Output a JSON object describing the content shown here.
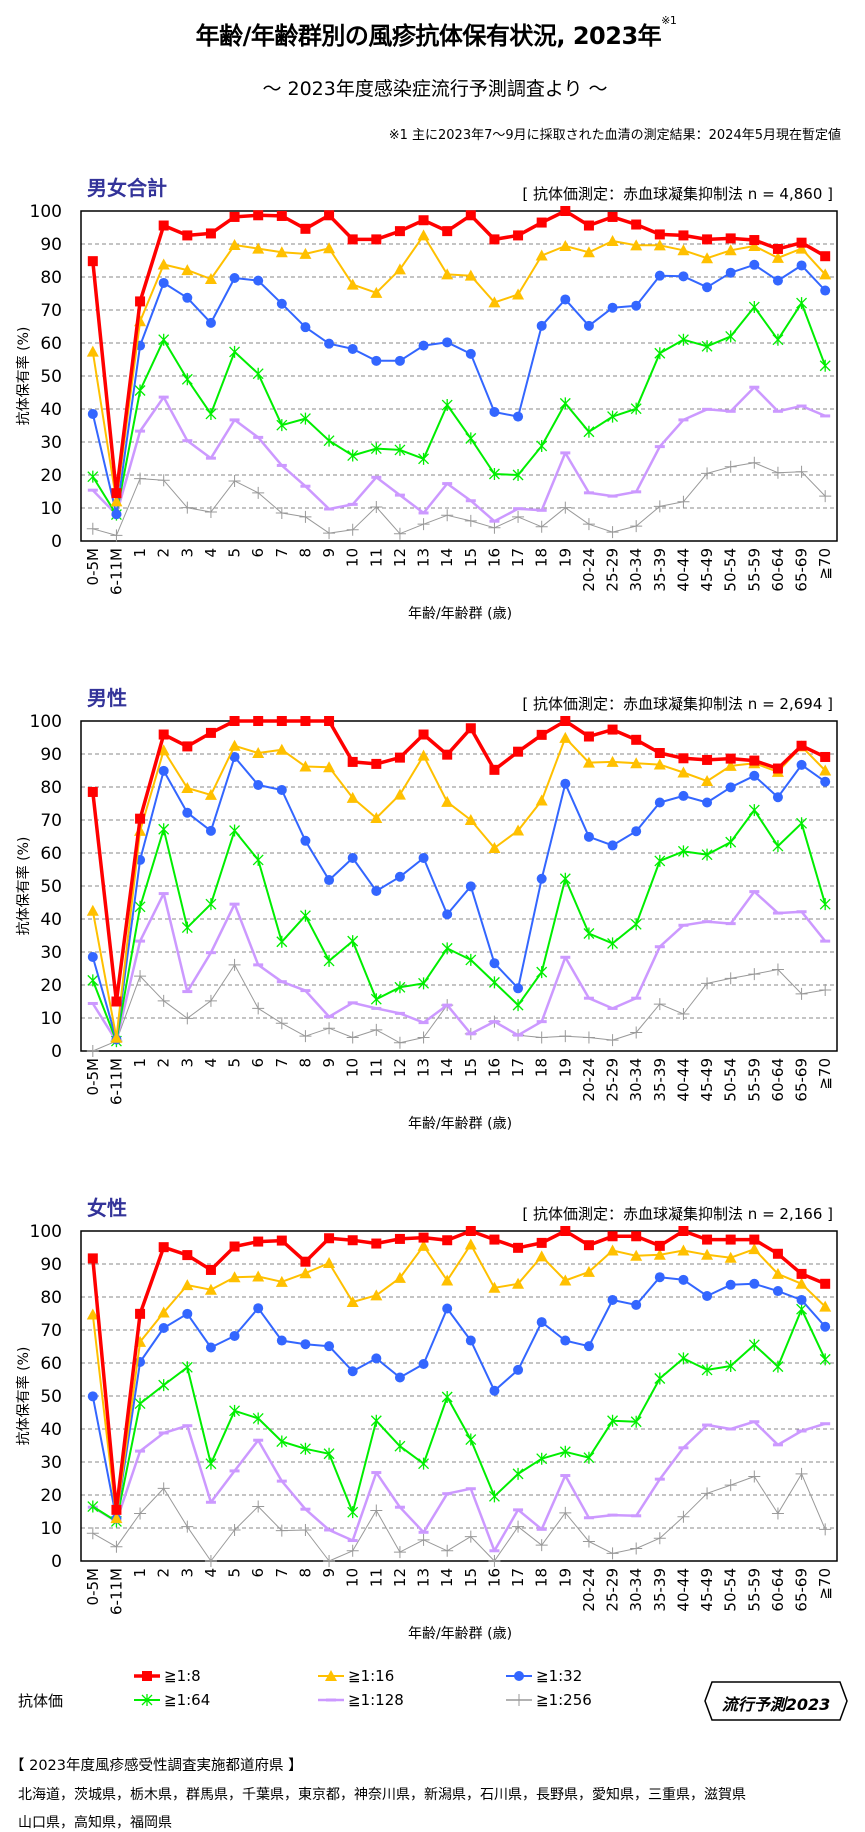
{
  "header": {
    "title": "年齢/年齢群別の風疹抗体保有状況, 2023年",
    "title_mark": "※1",
    "subtitle": "～ 2023年度感染症流行予測調査より ～",
    "note": "※1  主に2023年7～9月に採取された血清の測定結果：2024年5月現在暫定値"
  },
  "legend": {
    "title": "抗体価",
    "items": [
      {
        "label": "≧1:8",
        "color": "#ff0000",
        "marker": "square"
      },
      {
        "label": "≧1:16",
        "color": "#ffc000",
        "marker": "triangle"
      },
      {
        "label": "≧1:32",
        "color": "#3366ff",
        "marker": "circle"
      },
      {
        "label": "≧1:64",
        "color": "#00ee00",
        "marker": "asterisk"
      },
      {
        "label": "≧1:128",
        "color": "#cc99ff",
        "marker": "dash"
      },
      {
        "label": "≧1:256",
        "color": "#999999",
        "marker": "plus"
      }
    ]
  },
  "badge": {
    "label": "流行予測2023"
  },
  "footer": {
    "heading": "【 2023年度風疹感受性調査実施都道府県 】",
    "lines": [
      "北海道，茨城県，栃木県，群馬県，千葉県，東京都，神奈川県，新潟県，石川県，長野県，愛知県，三重県，滋賀県",
      "山口県，高知県，福岡県"
    ]
  },
  "chart_data": [
    {
      "type": "line",
      "title": "男女合計",
      "method_note": "[ 抗体価測定：赤血球凝集抑制法 n = 4,860 ]",
      "xlabel": "年齢/年齢群 (歳)",
      "ylabel": "抗体保有率 (%)",
      "ylim": [
        0,
        100
      ],
      "yticks": [
        "0",
        "10",
        "20",
        "30",
        "40",
        "50",
        "60",
        "70",
        "80",
        "90",
        "100"
      ],
      "grid": "horizontal-dashed",
      "categories": [
        "0-5M",
        "6-11M",
        "1",
        "2",
        "3",
        "4",
        "5",
        "6",
        "7",
        "8",
        "9",
        "10",
        "11",
        "12",
        "13",
        "14",
        "15",
        "16",
        "17",
        "18",
        "19",
        "20-24",
        "25-29",
        "30-34",
        "35-39",
        "40-44",
        "45-49",
        "50-54",
        "55-59",
        "60-64",
        "65-69",
        "≧70"
      ],
      "series": [
        {
          "name": "≧1:8",
          "color": "#ff0000",
          "marker": "square",
          "values": [
            84.8,
            14.5,
            72.6,
            95.6,
            92.6,
            93.2,
            98.2,
            98.7,
            98.5,
            94.6,
            98.7,
            91.4,
            91.4,
            93.9,
            97.2,
            93.9,
            98.7,
            91.4,
            92.6,
            96.5,
            100,
            95.6,
            98.2,
            95.9,
            92.9,
            92.6,
            91.4,
            91.7,
            91.2,
            88.5,
            90.4,
            86.3
          ]
        },
        {
          "name": "≧1:16",
          "color": "#ffc000",
          "marker": "triangle",
          "values": [
            57.4,
            12,
            66.6,
            83.8,
            82.1,
            79.4,
            89.7,
            88.6,
            87.5,
            87.0,
            88.7,
            77.7,
            75.2,
            82.3,
            92.6,
            80.8,
            80.4,
            72.3,
            74.7,
            86.5,
            89.4,
            87.5,
            90.9,
            89.6,
            89.6,
            88.1,
            85.7,
            88.1,
            89.4,
            85.8,
            88.6,
            80.8
          ]
        },
        {
          "name": "≧1:32",
          "color": "#3366ff",
          "marker": "circle",
          "values": [
            38.5,
            8.1,
            59.2,
            78.2,
            73.7,
            66.1,
            79.7,
            78.9,
            71.9,
            64.8,
            59.8,
            58.2,
            54.6,
            54.6,
            59.2,
            60.2,
            56.7,
            39.1,
            37.7,
            65.2,
            73.2,
            65.2,
            70.7,
            71.3,
            80.4,
            80.2,
            76.9,
            81.3,
            83.7,
            78.9,
            83.5,
            75.9
          ]
        },
        {
          "name": "≧1:64",
          "color": "#00ee00",
          "marker": "asterisk",
          "values": [
            19.5,
            8,
            45.6,
            61.0,
            49.0,
            38.5,
            57.3,
            50.7,
            35.1,
            37.1,
            30.4,
            25.9,
            28.0,
            27.6,
            24.9,
            41.2,
            31.1,
            20.3,
            20.0,
            28.8,
            41.7,
            33.1,
            37.7,
            40.1,
            56.9,
            61.0,
            59.0,
            62.0,
            70.9,
            61.0,
            72.1,
            53.1
          ]
        },
        {
          "name": "≧1:128",
          "color": "#cc99ff",
          "marker": "dash",
          "values": [
            15.4,
            8,
            33.3,
            43.6,
            30.4,
            25.1,
            36.7,
            31.4,
            22.9,
            16.6,
            9.7,
            11.1,
            19.3,
            13.9,
            8.5,
            17.4,
            12.2,
            6.0,
            9.8,
            9.3,
            26.7,
            14.6,
            13.6,
            14.9,
            28.6,
            36.7,
            39.9,
            39.3,
            46.6,
            39.3,
            40.9,
            37.9
          ]
        },
        {
          "name": "≧1:256",
          "color": "#999999",
          "marker": "plus",
          "values": [
            3.7,
            1.7,
            18.9,
            18.4,
            10.1,
            8.8,
            18.2,
            14.6,
            8.5,
            7.3,
            2.4,
            3.4,
            10.3,
            2.2,
            5.1,
            7.8,
            6.1,
            4.0,
            7.3,
            4.3,
            10.1,
            5.1,
            2.7,
            4.5,
            10.5,
            11.9,
            20.5,
            22.5,
            23.7,
            20.7,
            21.0,
            13.6
          ]
        }
      ]
    },
    {
      "type": "line",
      "title": "男性",
      "method_note": "[ 抗体価測定：赤血球凝集抑制法 n = 2,694 ]",
      "xlabel": "年齢/年齢群 (歳)",
      "ylabel": "抗体保有率 (%)",
      "ylim": [
        0,
        100
      ],
      "yticks": [
        "0",
        "10",
        "20",
        "30",
        "40",
        "50",
        "60",
        "70",
        "80",
        "90",
        "100"
      ],
      "grid": "horizontal-dashed",
      "categories": [
        "0-5M",
        "6-11M",
        "1",
        "2",
        "3",
        "4",
        "5",
        "6",
        "7",
        "8",
        "9",
        "10",
        "11",
        "12",
        "13",
        "14",
        "15",
        "16",
        "17",
        "18",
        "19",
        "20-24",
        "25-29",
        "30-34",
        "35-39",
        "40-44",
        "45-49",
        "50-54",
        "55-59",
        "60-64",
        "65-69",
        "≧70"
      ],
      "series": [
        {
          "name": "≧1:8",
          "color": "#ff0000",
          "marker": "square",
          "values": [
            78.5,
            15,
            70.4,
            95.9,
            92.3,
            96.4,
            100,
            100,
            100,
            100,
            100,
            87.6,
            87.0,
            88.9,
            95.9,
            89.8,
            97.8,
            85.2,
            90.7,
            95.8,
            100,
            95.3,
            97.4,
            94.3,
            90.3,
            88.7,
            88.2,
            88.6,
            88.0,
            85.6,
            92.5,
            89.1
          ]
        },
        {
          "name": "≧1:16",
          "color": "#ffc000",
          "marker": "triangle",
          "values": [
            42.5,
            4,
            66.7,
            91.1,
            79.7,
            77.6,
            92.5,
            90.3,
            91.3,
            86.2,
            86.0,
            76.7,
            70.6,
            77.7,
            89.5,
            75.5,
            70.0,
            61.5,
            66.8,
            75.9,
            94.9,
            87.4,
            87.6,
            87.2,
            86.8,
            84.4,
            81.8,
            86.4,
            87.2,
            84.6,
            92.3,
            85.0
          ]
        },
        {
          "name": "≧1:32",
          "color": "#3366ff",
          "marker": "circle",
          "values": [
            28.5,
            3.5,
            57.9,
            84.9,
            72.2,
            66.7,
            89.1,
            80.6,
            79.1,
            63.7,
            51.8,
            58.5,
            48.5,
            52.8,
            58.5,
            41.4,
            49.9,
            26.6,
            19.0,
            52.2,
            81.0,
            64.9,
            62.3,
            66.6,
            75.3,
            77.3,
            75.3,
            79.9,
            83.4,
            76.9,
            86.7,
            81.6
          ]
        },
        {
          "name": "≧1:64",
          "color": "#00ee00",
          "marker": "asterisk",
          "values": [
            21.4,
            3,
            43.7,
            67.2,
            37.4,
            44.5,
            66.8,
            57.9,
            33.1,
            41.0,
            27.3,
            33.3,
            15.7,
            19.3,
            20.5,
            31.1,
            27.6,
            20.8,
            13.9,
            23.9,
            52.2,
            35.6,
            32.6,
            38.4,
            57.6,
            60.5,
            59.5,
            63.3,
            73.0,
            62.1,
            69.0,
            44.5
          ]
        },
        {
          "name": "≧1:128",
          "color": "#cc99ff",
          "marker": "dash",
          "values": [
            14.4,
            3,
            33.3,
            47.7,
            18.0,
            29.8,
            44.5,
            26.1,
            21.0,
            18.3,
            10.4,
            14.6,
            12.9,
            11.4,
            8.6,
            13.9,
            5.2,
            8.9,
            4.8,
            8.9,
            28.4,
            16.0,
            12.9,
            16.0,
            31.6,
            38.1,
            39.2,
            38.6,
            48.3,
            41.8,
            42.2,
            33.3
          ]
        },
        {
          "name": "≧1:256",
          "color": "#999999",
          "marker": "plus",
          "values": [
            0,
            3,
            22.7,
            15.2,
            9.9,
            15.2,
            26.1,
            12.9,
            8.4,
            4.5,
            6.9,
            4.1,
            6.4,
            2.5,
            4.1,
            13.9,
            5.2,
            8.9,
            4.8,
            4.1,
            4.5,
            4.1,
            3.3,
            5.6,
            14.2,
            11.2,
            20.5,
            22.0,
            23.3,
            24.7,
            17.3,
            18.5
          ]
        }
      ]
    },
    {
      "type": "line",
      "title": "女性",
      "method_note": "[ 抗体価測定：赤血球凝集抑制法 n = 2,166 ]",
      "xlabel": "年齢/年齢群 (歳)",
      "ylabel": "抗体保有率 (%)",
      "ylim": [
        0,
        100
      ],
      "yticks": [
        "0",
        "10",
        "20",
        "30",
        "40",
        "50",
        "60",
        "70",
        "80",
        "90",
        "100"
      ],
      "grid": "horizontal-dashed",
      "categories": [
        "0-5M",
        "6-11M",
        "1",
        "2",
        "3",
        "4",
        "5",
        "6",
        "7",
        "8",
        "9",
        "10",
        "11",
        "12",
        "13",
        "14",
        "15",
        "16",
        "17",
        "18",
        "19",
        "20-24",
        "25-29",
        "30-34",
        "35-39",
        "40-44",
        "45-49",
        "50-54",
        "55-59",
        "60-64",
        "65-69",
        "≧70"
      ],
      "series": [
        {
          "name": "≧1:8",
          "color": "#ff0000",
          "marker": "square",
          "values": [
            91.7,
            15.5,
            74.9,
            95.1,
            92.7,
            88.2,
            95.3,
            96.8,
            97.1,
            90.7,
            97.8,
            97.2,
            96.2,
            97.6,
            98.0,
            97.2,
            100,
            97.4,
            94.9,
            96.4,
            100,
            95.7,
            98.4,
            98.4,
            95.5,
            100,
            97.4,
            97.4,
            97.4,
            93.1,
            87.0,
            84.0
          ]
        },
        {
          "name": "≧1:16",
          "color": "#ffc000",
          "marker": "triangle",
          "values": [
            74.7,
            13,
            66.4,
            75.3,
            83.6,
            82.2,
            86.0,
            86.2,
            84.6,
            87.2,
            90.3,
            78.5,
            80.5,
            85.8,
            95.5,
            85.0,
            95.9,
            82.8,
            84.0,
            92.3,
            85.0,
            87.6,
            94.1,
            92.5,
            92.8,
            94.1,
            92.8,
            91.9,
            94.5,
            87.0,
            84.0,
            77.1
          ]
        },
        {
          "name": "≧1:32",
          "color": "#3366ff",
          "marker": "circle",
          "values": [
            49.9,
            12.8,
            60.3,
            70.6,
            74.9,
            64.7,
            68.2,
            76.6,
            66.8,
            65.7,
            65.1,
            57.5,
            61.4,
            55.6,
            59.7,
            76.5,
            66.8,
            51.6,
            57.9,
            72.4,
            66.8,
            65.1,
            79.1,
            77.6,
            86.0,
            85.2,
            80.3,
            83.7,
            84.0,
            81.8,
            79.1,
            71.0
          ]
        },
        {
          "name": "≧1:64",
          "color": "#00ee00",
          "marker": "asterisk",
          "values": [
            16.5,
            12,
            47.7,
            53.3,
            58.7,
            29.5,
            45.5,
            43.2,
            36.2,
            34.0,
            32.5,
            14.8,
            42.5,
            34.8,
            29.5,
            49.7,
            36.8,
            19.6,
            26.4,
            31.0,
            33.1,
            31.3,
            42.5,
            42.2,
            55.3,
            61.4,
            57.9,
            59.1,
            65.5,
            58.9,
            76.3,
            61.1
          ]
        },
        {
          "name": "≧1:128",
          "color": "#cc99ff",
          "marker": "dash",
          "values": [
            16.3,
            12,
            33.3,
            38.8,
            41.0,
            17.8,
            27.3,
            36.6,
            24.2,
            15.7,
            9.4,
            6.2,
            26.8,
            16.3,
            8.7,
            20.4,
            21.9,
            3.1,
            15.5,
            9.6,
            25.9,
            13.1,
            13.9,
            13.7,
            24.8,
            34.3,
            41.2,
            40.0,
            42.2,
            35.2,
            39.4,
            41.6
          ]
        },
        {
          "name": "≧1:256",
          "color": "#999999",
          "marker": "plus",
          "values": [
            8.4,
            4.3,
            14.4,
            22.0,
            10.4,
            0,
            9.4,
            16.5,
            9.2,
            9.4,
            0,
            3.1,
            15.3,
            2.7,
            6.4,
            3.1,
            7.4,
            0,
            10.4,
            4.8,
            14.6,
            5.9,
            2.3,
            3.8,
            6.9,
            13.4,
            20.5,
            23.0,
            25.6,
            14.4,
            26.4,
            9.6
          ]
        }
      ]
    }
  ]
}
